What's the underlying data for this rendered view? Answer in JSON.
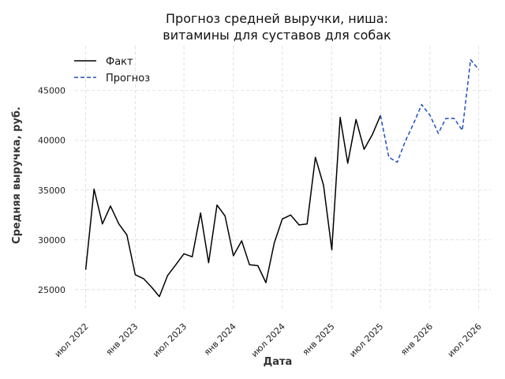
{
  "chart_data": {
    "type": "line",
    "title": [
      "Прогноз средней выручки, ниша:",
      "витамины для суставов для собак"
    ],
    "xlabel": "Дата",
    "ylabel": "Средняя выручка, руб.",
    "ylim": [
      23000,
      49500
    ],
    "yticks": [
      25000,
      30000,
      35000,
      40000,
      45000
    ],
    "xlim": [
      "2022-05-22",
      "2026-08-15"
    ],
    "xticks": [
      {
        "date": "2022-07-01",
        "label": "июл 2022"
      },
      {
        "date": "2023-01-01",
        "label": "янв 2023"
      },
      {
        "date": "2023-07-01",
        "label": "июл 2023"
      },
      {
        "date": "2024-01-01",
        "label": "янв 2024"
      },
      {
        "date": "2024-07-01",
        "label": "июл 2024"
      },
      {
        "date": "2025-01-01",
        "label": "янв 2025"
      },
      {
        "date": "2025-07-01",
        "label": "июл 2025"
      },
      {
        "date": "2026-01-01",
        "label": "янв 2026"
      },
      {
        "date": "2026-07-01",
        "label": "июл 2026"
      }
    ],
    "grid": true,
    "legend_position": "top-left",
    "series": [
      {
        "name": "Факт",
        "color": "#000000",
        "style": "solid",
        "points": [
          [
            "2022-07-01",
            27000
          ],
          [
            "2022-08-01",
            35100
          ],
          [
            "2022-09-01",
            31600
          ],
          [
            "2022-10-01",
            33400
          ],
          [
            "2022-11-01",
            31600
          ],
          [
            "2022-12-01",
            30500
          ],
          [
            "2023-01-01",
            26500
          ],
          [
            "2023-02-01",
            26100
          ],
          [
            "2023-03-01",
            25300
          ],
          [
            "2023-04-01",
            24300
          ],
          [
            "2023-05-01",
            26400
          ],
          [
            "2023-06-01",
            27500
          ],
          [
            "2023-07-01",
            28600
          ],
          [
            "2023-08-01",
            28300
          ],
          [
            "2023-09-01",
            32700
          ],
          [
            "2023-10-01",
            27700
          ],
          [
            "2023-11-01",
            33500
          ],
          [
            "2023-12-01",
            32400
          ],
          [
            "2024-01-01",
            28400
          ],
          [
            "2024-02-01",
            29900
          ],
          [
            "2024-03-01",
            27500
          ],
          [
            "2024-04-01",
            27400
          ],
          [
            "2024-05-01",
            25700
          ],
          [
            "2024-06-01",
            29700
          ],
          [
            "2024-07-01",
            32100
          ],
          [
            "2024-08-01",
            32500
          ],
          [
            "2024-09-01",
            31500
          ],
          [
            "2024-10-01",
            31600
          ],
          [
            "2024-11-01",
            38300
          ],
          [
            "2024-12-01",
            35500
          ],
          [
            "2025-01-01",
            29000
          ],
          [
            "2025-02-01",
            42300
          ],
          [
            "2025-03-01",
            37700
          ],
          [
            "2025-04-01",
            42100
          ],
          [
            "2025-05-01",
            39100
          ],
          [
            "2025-06-01",
            40600
          ],
          [
            "2025-07-01",
            42500
          ]
        ]
      },
      {
        "name": "Прогноз",
        "color": "#1f4fc4",
        "style": "dashed",
        "points": [
          [
            "2025-07-01",
            42500
          ],
          [
            "2025-08-01",
            38300
          ],
          [
            "2025-09-01",
            37800
          ],
          [
            "2025-10-01",
            39900
          ],
          [
            "2025-11-01",
            41700
          ],
          [
            "2025-12-01",
            43600
          ],
          [
            "2026-01-01",
            42500
          ],
          [
            "2026-02-01",
            40700
          ],
          [
            "2026-03-01",
            42200
          ],
          [
            "2026-04-01",
            42200
          ],
          [
            "2026-05-01",
            41000
          ],
          [
            "2026-06-01",
            48100
          ],
          [
            "2026-07-01",
            47100
          ]
        ]
      }
    ]
  }
}
